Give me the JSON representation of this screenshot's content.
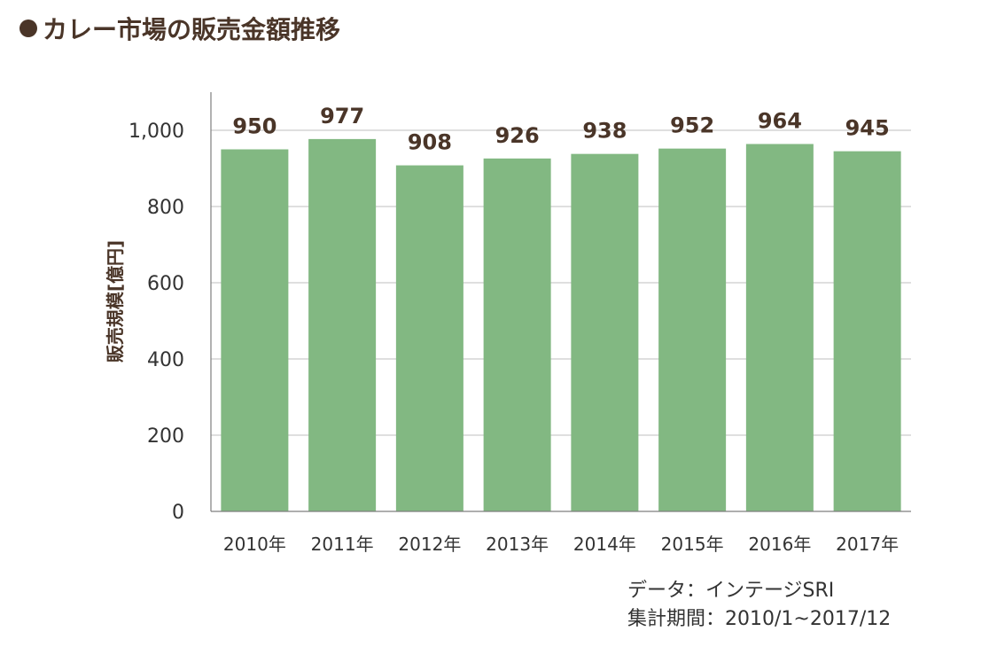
{
  "header": {
    "title": "カレー市場の販売金額推移"
  },
  "chart_data": {
    "type": "bar",
    "categories": [
      "2010年",
      "2011年",
      "2012年",
      "2013年",
      "2014年",
      "2015年",
      "2016年",
      "2017年"
    ],
    "values": [
      950,
      977,
      908,
      926,
      938,
      952,
      964,
      945
    ],
    "title": "カレー市場の販売金額推移",
    "xlabel": "",
    "ylabel": "販売規模[億円]",
    "ylim": [
      0,
      1000
    ],
    "yticks": [
      0,
      200,
      400,
      600,
      800,
      1000
    ],
    "ytick_labels": [
      "0",
      "200",
      "400",
      "600",
      "800",
      "1,000"
    ],
    "data_labels": true,
    "grid": true,
    "legend": "none",
    "bar_color": "#82b882"
  },
  "footer": {
    "source_line1": "データ：インテージSRI",
    "source_line2": "集計期間：2010/1~2017/12"
  },
  "colors": {
    "title": "#4a3528",
    "data_label": "#4a3528",
    "axis_text": "#333333",
    "grid": "#bfbfbf"
  }
}
